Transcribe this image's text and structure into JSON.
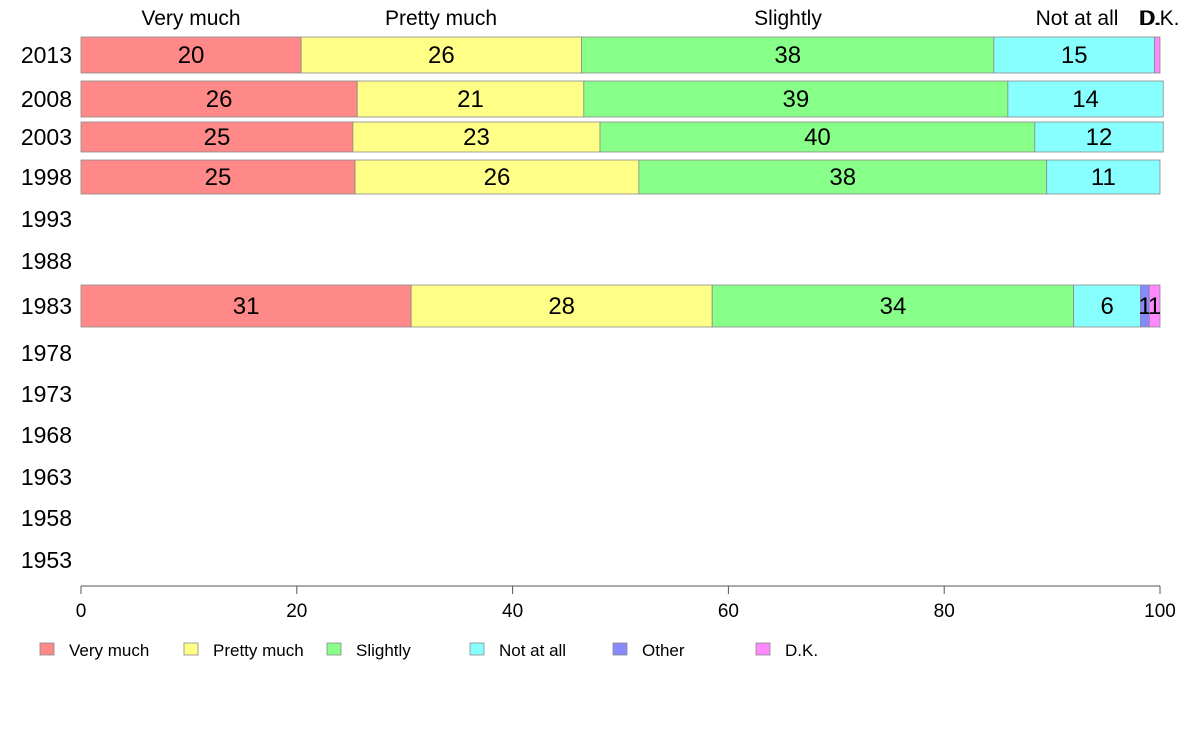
{
  "chart_data": {
    "type": "bar",
    "orientation": "horizontal",
    "stacked": true,
    "categories": [
      "2013",
      "2008",
      "2003",
      "1998",
      "1993",
      "1988",
      "1983",
      "1978",
      "1973",
      "1968",
      "1963",
      "1958",
      "1953"
    ],
    "series": [
      {
        "name": "Very much",
        "color": "#ff8888",
        "values": [
          20.4,
          25.6,
          25.2,
          25.4,
          null,
          null,
          30.6,
          null,
          null,
          null,
          null,
          null,
          null
        ],
        "labels": [
          "20",
          "26",
          "25",
          "25",
          "",
          "",
          "31",
          "",
          "",
          "",
          "",
          "",
          ""
        ]
      },
      {
        "name": "Pretty much",
        "color": "#ffff88",
        "values": [
          26.0,
          21.0,
          22.9,
          26.3,
          null,
          null,
          27.9,
          null,
          null,
          null,
          null,
          null,
          null
        ],
        "labels": [
          "26",
          "21",
          "23",
          "26",
          "",
          "",
          "28",
          "",
          "",
          "",
          "",
          "",
          ""
        ]
      },
      {
        "name": "Slightly",
        "color": "#88ff88",
        "values": [
          38.2,
          39.3,
          40.3,
          37.8,
          null,
          null,
          33.5,
          null,
          null,
          null,
          null,
          null,
          null
        ],
        "labels": [
          "38",
          "39",
          "40",
          "38",
          "",
          "",
          "34",
          "",
          "",
          "",
          "",
          "",
          ""
        ]
      },
      {
        "name": "Not at all",
        "color": "#88ffff",
        "values": [
          14.9,
          14.4,
          11.9,
          10.5,
          null,
          null,
          6.2,
          null,
          null,
          null,
          null,
          null,
          null
        ],
        "labels": [
          "15",
          "14",
          "12",
          "11",
          "",
          "",
          "6",
          "",
          "",
          "",
          "",
          "",
          ""
        ]
      },
      {
        "name": "Other",
        "color": "#8888ff",
        "values": [
          0,
          0,
          0,
          0,
          null,
          null,
          0.8,
          null,
          null,
          null,
          null,
          null,
          null
        ],
        "labels": [
          "",
          "",
          "",
          "",
          "",
          "",
          "1",
          "",
          "",
          "",
          "",
          "",
          ""
        ]
      },
      {
        "name": "D.K.",
        "color": "#ff88ff",
        "values": [
          0.5,
          0,
          0,
          0,
          null,
          null,
          1.0,
          null,
          null,
          null,
          null,
          null,
          null
        ],
        "labels": [
          "",
          "",
          "",
          "",
          "",
          "",
          "1",
          "",
          "",
          "",
          "",
          "",
          ""
        ]
      }
    ],
    "column_labels": [
      "Very much",
      "Pretty much",
      "Slightly",
      "Not at all",
      "D.",
      "D.K."
    ],
    "xlim": [
      0,
      100
    ],
    "xticks": [
      "0",
      "20",
      "40",
      "60",
      "80",
      "100"
    ],
    "legend_position": "bottom",
    "grid": false
  }
}
